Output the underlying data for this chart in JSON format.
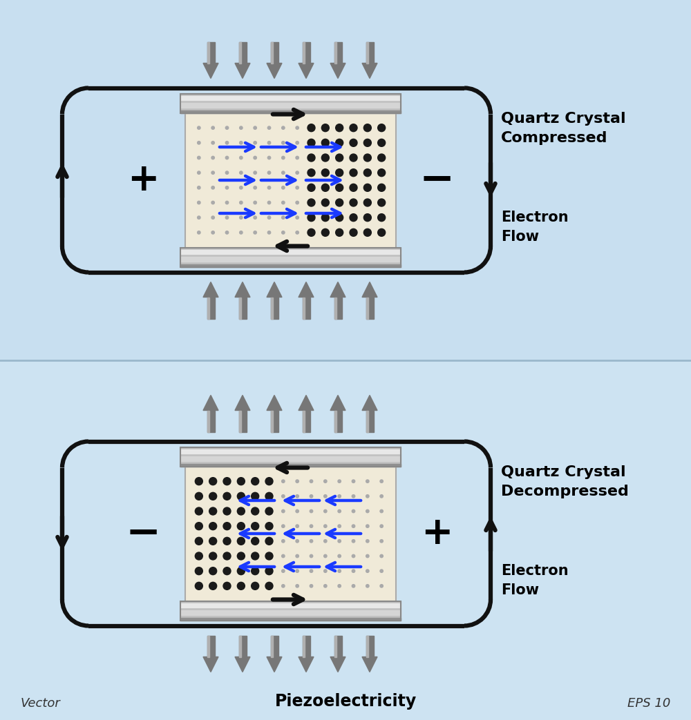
{
  "fig_width": 10.0,
  "fig_height": 10.43,
  "title": "Piezoelectricity",
  "label_vector": "Vector",
  "label_eps": "EPS 10",
  "panel1_title": "Quartz Crystal\nCompressed",
  "panel2_title": "Quartz Crystal\nDecompressed",
  "electron_flow": "Electron\nFlow",
  "arrow_blue": "#1a3aff",
  "circuit_color": "#111111",
  "bg_color_top": "#c8dff0",
  "bg_color_bot": "#cde3f2",
  "divider_color": "#9ab8cc",
  "plate_base": "#c0c0c0",
  "plate_light": "#e8e8e8",
  "plate_dark": "#909090",
  "crystal_bg": "#f0ead8",
  "dot_small_color": "#aaaaaa",
  "dot_large_color": "#1a1a1a",
  "press_arrow_color": "#777777",
  "press_arrow_light": "#b0b0b0"
}
